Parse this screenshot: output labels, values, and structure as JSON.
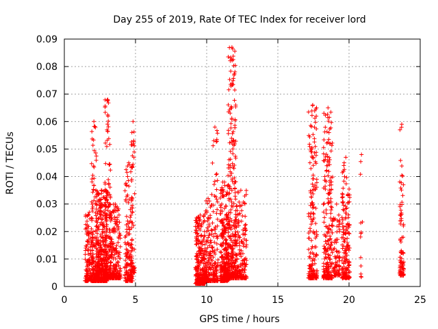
{
  "chart_data": {
    "type": "scatter",
    "title": "Day 255 of 2019, Rate Of TEC Index for receiver lord",
    "xlabel": "GPS time / hours",
    "ylabel": "ROTI / TECUs",
    "xlim": [
      0,
      25
    ],
    "ylim": [
      0,
      0.09
    ],
    "xticks": [
      "0",
      "5",
      "10",
      "15",
      "20",
      "25"
    ],
    "yticks": [
      "0",
      "0.01",
      "0.02",
      "0.03",
      "0.04",
      "0.05",
      "0.06",
      "0.07",
      "0.08",
      "0.09"
    ],
    "grid": true,
    "marker": "+",
    "color": "#ff0000",
    "clusters": [
      {
        "x_range": [
          1.45,
          2.05
        ],
        "y_range": [
          0.002,
          0.027
        ],
        "n": 140
      },
      {
        "x_range": [
          1.9,
          2.25
        ],
        "y_range": [
          0.002,
          0.06
        ],
        "n": 110
      },
      {
        "x_range": [
          2.2,
          3.0
        ],
        "y_range": [
          0.002,
          0.035
        ],
        "n": 420
      },
      {
        "x_range": [
          2.85,
          3.25
        ],
        "y_range": [
          0.003,
          0.068
        ],
        "n": 150
      },
      {
        "x_range": [
          3.2,
          3.95
        ],
        "y_range": [
          0.003,
          0.03
        ],
        "n": 220
      },
      {
        "x_range": [
          4.25,
          4.8
        ],
        "y_range": [
          0.002,
          0.045
        ],
        "n": 170
      },
      {
        "x_range": [
          4.7,
          4.95
        ],
        "y_range": [
          0.005,
          0.06
        ],
        "n": 45
      },
      {
        "x_range": [
          9.2,
          9.9
        ],
        "y_range": [
          0.001,
          0.026
        ],
        "n": 260
      },
      {
        "x_range": [
          9.85,
          10.35
        ],
        "y_range": [
          0.002,
          0.032
        ],
        "n": 160
      },
      {
        "x_range": [
          10.35,
          10.8
        ],
        "y_range": [
          0.002,
          0.058
        ],
        "n": 110
      },
      {
        "x_range": [
          10.95,
          11.55
        ],
        "y_range": [
          0.002,
          0.038
        ],
        "n": 280
      },
      {
        "x_range": [
          11.5,
          12.05
        ],
        "y_range": [
          0.003,
          0.087
        ],
        "n": 260
      },
      {
        "x_range": [
          12.0,
          12.8
        ],
        "y_range": [
          0.003,
          0.035
        ],
        "n": 190
      },
      {
        "x_range": [
          17.15,
          17.75
        ],
        "y_range": [
          0.003,
          0.066
        ],
        "n": 190
      },
      {
        "x_range": [
          18.2,
          18.85
        ],
        "y_range": [
          0.003,
          0.065
        ],
        "n": 230
      },
      {
        "x_range": [
          18.9,
          19.35
        ],
        "y_range": [
          0.004,
          0.03
        ],
        "n": 80
      },
      {
        "x_range": [
          19.5,
          20.05
        ],
        "y_range": [
          0.003,
          0.047
        ],
        "n": 170
      },
      {
        "x_range": [
          20.8,
          20.95
        ],
        "y_range": [
          0.003,
          0.048
        ],
        "n": 12
      },
      {
        "x_range": [
          23.55,
          23.85
        ],
        "y_range": [
          0.004,
          0.059
        ],
        "n": 90
      }
    ]
  }
}
